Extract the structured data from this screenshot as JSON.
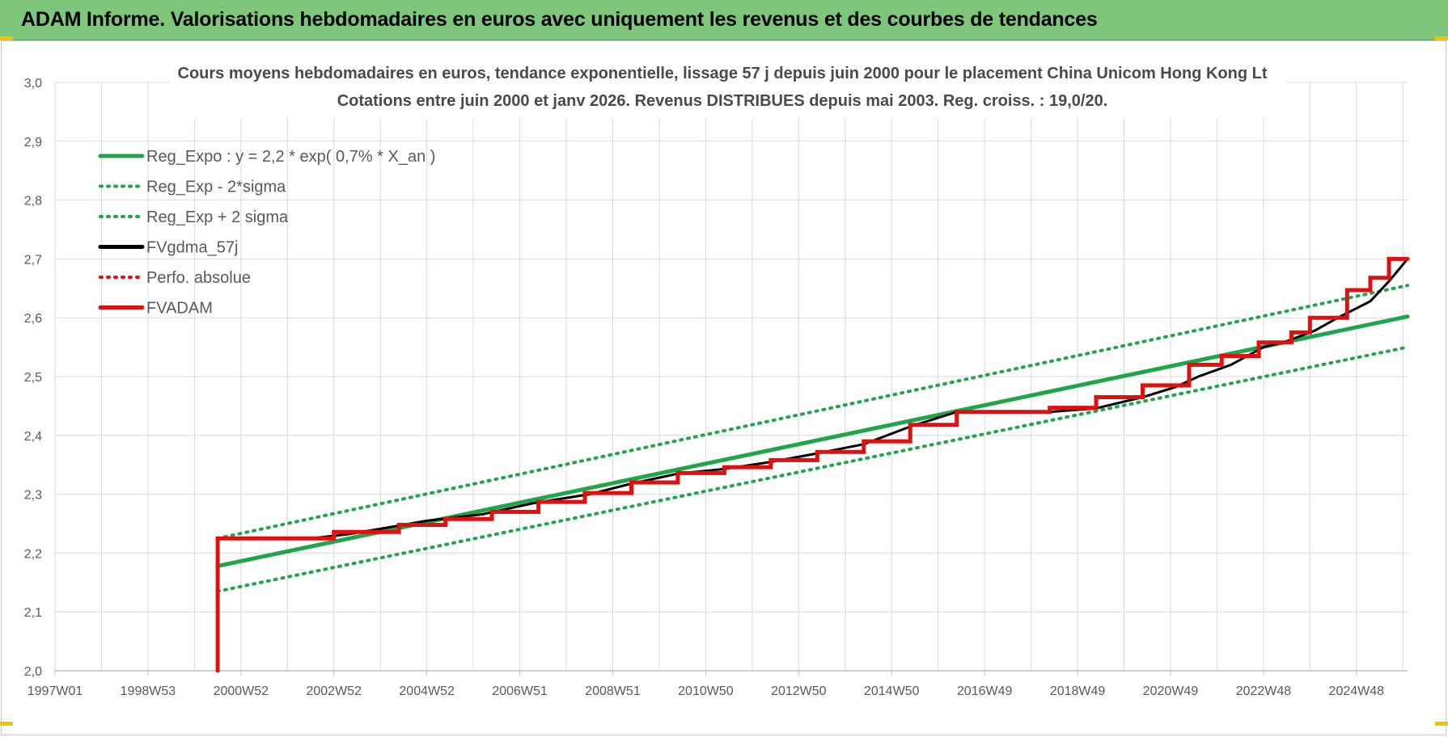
{
  "header": {
    "title": "ADAM Informe. Valorisations hebdomadaires en euros avec uniquement les revenus et des courbes de tendances"
  },
  "chart_data": {
    "type": "line",
    "title": "Cours moyens hebdomadaires en euros, tendance exponentielle, lissage 57 j depuis juin 2000 pour le placement China Unicom Hong Kong Lt",
    "subtitle": "Cotations entre juin 2000 et janv 2026. Revenus DISTRIBUES depuis mai 2003. Reg. croiss. : 19,0/20.",
    "xlabel": "",
    "ylabel": "",
    "ylim": [
      2.0,
      3.0
    ],
    "xlim": [
      1997.0,
      2026.1
    ],
    "y_ticks": [
      "2,0",
      "2,1",
      "2,2",
      "2,3",
      "2,4",
      "2,5",
      "2,6",
      "2,7",
      "2,8",
      "2,9",
      "3,0"
    ],
    "x_ticks": [
      {
        "label": "1997W01",
        "x": 1997.0
      },
      {
        "label": "1998W53",
        "x": 1999.0
      },
      {
        "label": "2000W52",
        "x": 2001.0
      },
      {
        "label": "2002W52",
        "x": 2003.0
      },
      {
        "label": "2004W52",
        "x": 2005.0
      },
      {
        "label": "2006W51",
        "x": 2007.0
      },
      {
        "label": "2008W51",
        "x": 2009.0
      },
      {
        "label": "2010W50",
        "x": 2011.0
      },
      {
        "label": "2012W50",
        "x": 2013.0
      },
      {
        "label": "2014W50",
        "x": 2015.0
      },
      {
        "label": "2016W49",
        "x": 2017.0
      },
      {
        "label": "2018W49",
        "x": 2019.0
      },
      {
        "label": "2020W49",
        "x": 2021.0
      },
      {
        "label": "2022W48",
        "x": 2023.0
      },
      {
        "label": "2024W48",
        "x": 2025.0
      }
    ],
    "grid": true,
    "legend_position": "top-left",
    "series": [
      {
        "name": "Reg_Expo : y = 2,2 * exp( 0,7% *  X_an )",
        "color": "#1fa64a",
        "style": "solid",
        "x": [
          2000.5,
          2026.1
        ],
        "y": [
          2.178,
          2.602
        ]
      },
      {
        "name": "Reg_Exp - 2*sigma",
        "color": "#1fa64a",
        "style": "dotted",
        "x": [
          2000.5,
          2026.1
        ],
        "y": [
          2.135,
          2.55
        ]
      },
      {
        "name": "Reg_Exp + 2 sigma",
        "color": "#1fa64a",
        "style": "dotted",
        "x": [
          2000.5,
          2026.1
        ],
        "y": [
          2.225,
          2.655
        ]
      },
      {
        "name": "FVgdma_57j",
        "color": "#000000",
        "style": "solid",
        "x": [
          2000.5,
          2002.5,
          2003.3,
          2004.2,
          2005.0,
          2006.2,
          2007.3,
          2008.5,
          2009.4,
          2010.4,
          2011.4,
          2012.4,
          2013.3,
          2014.4,
          2015.4,
          2016.4,
          2018.4,
          2019.4,
          2020.4,
          2021.1,
          2021.6,
          2022.3,
          2023.0,
          2023.5,
          2024.1,
          2024.6,
          2025.3,
          2025.7,
          2026.1
        ],
        "y": [
          2.225,
          2.225,
          2.232,
          2.244,
          2.255,
          2.266,
          2.285,
          2.3,
          2.318,
          2.335,
          2.343,
          2.355,
          2.368,
          2.385,
          2.415,
          2.44,
          2.44,
          2.446,
          2.465,
          2.482,
          2.5,
          2.52,
          2.55,
          2.56,
          2.578,
          2.6,
          2.628,
          2.662,
          2.7
        ]
      },
      {
        "name": "Perfo. absolue",
        "color": "#e01010",
        "style": "dotted",
        "x": [],
        "y": []
      },
      {
        "name": "FVADAM",
        "color": "#e01010",
        "style": "solid",
        "x": [
          2000.5,
          2000.5,
          2003.0,
          2003.0,
          2004.4,
          2004.4,
          2005.4,
          2005.4,
          2006.4,
          2006.4,
          2007.4,
          2007.4,
          2008.4,
          2008.4,
          2009.4,
          2009.4,
          2010.4,
          2010.4,
          2011.4,
          2011.4,
          2012.4,
          2012.4,
          2013.4,
          2013.4,
          2014.4,
          2014.4,
          2015.4,
          2015.4,
          2016.4,
          2016.4,
          2018.4,
          2018.4,
          2019.4,
          2019.4,
          2020.4,
          2020.4,
          2021.4,
          2021.4,
          2022.1,
          2022.1,
          2022.9,
          2022.9,
          2023.6,
          2023.6,
          2024.0,
          2024.0,
          2024.8,
          2024.8,
          2025.3,
          2025.3,
          2025.7,
          2025.7,
          2026.1
        ],
        "y": [
          2.0,
          2.225,
          2.225,
          2.236,
          2.236,
          2.248,
          2.248,
          2.258,
          2.258,
          2.27,
          2.27,
          2.287,
          2.287,
          2.302,
          2.302,
          2.32,
          2.32,
          2.336,
          2.336,
          2.346,
          2.346,
          2.358,
          2.358,
          2.372,
          2.372,
          2.39,
          2.39,
          2.418,
          2.418,
          2.44,
          2.44,
          2.447,
          2.447,
          2.465,
          2.465,
          2.485,
          2.485,
          2.52,
          2.52,
          2.535,
          2.535,
          2.558,
          2.558,
          2.575,
          2.575,
          2.6,
          2.6,
          2.647,
          2.647,
          2.668,
          2.668,
          2.7,
          2.7
        ]
      }
    ]
  }
}
